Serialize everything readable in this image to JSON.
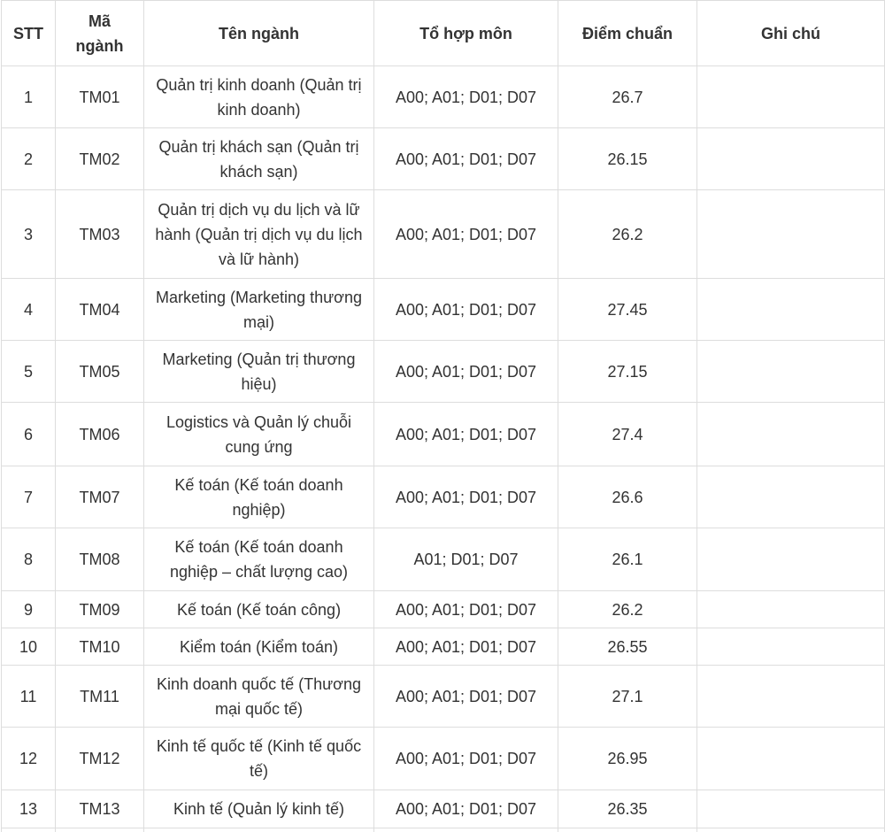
{
  "table": {
    "headers": [
      "STT",
      "Mã ngành",
      "Tên ngành",
      "Tổ hợp môn",
      "Điểm chuẩn",
      "Ghi chú"
    ],
    "rows": [
      [
        1,
        "TM01",
        "Quản trị kinh doanh (Quản trị kinh doanh)",
        "A00; A01; D01; D07",
        26.7
      ],
      [
        2,
        "TM02",
        "Quản trị khách sạn (Quản trị khách sạn)",
        "A00; A01; D01; D07",
        26.15
      ],
      [
        3,
        "TM03",
        "Quản trị dịch vụ du lịch và lữ hành (Quản trị dịch vụ du lịch và lữ hành)",
        "A00; A01; D01; D07",
        26.2
      ],
      [
        4,
        "TM04",
        "Marketing (Marketing thương mại)",
        "A00; A01; D01; D07",
        27.45
      ],
      [
        5,
        "TM05",
        "Marketing (Quản trị thương hiệu)",
        "A00; A01; D01; D07",
        27.15
      ],
      [
        6,
        "TM06",
        "Logistics và Quản lý chuỗi cung ứng",
        "A00; A01; D01; D07",
        27.4
      ],
      [
        7,
        "TM07",
        "Kế toán (Kế toán doanh nghiệp)",
        "A00; A01; D01; D07",
        26.6
      ],
      [
        8,
        "TM08",
        "Kế toán (Kế toán doanh nghiệp – chất lượng cao)",
        "A01; D01; D07",
        26.1
      ],
      [
        9,
        "TM09",
        "Kế toán (Kế toán công)",
        "A00; A01; D01; D07",
        26.2
      ],
      [
        10,
        "TM10",
        "Kiểm toán (Kiểm toán)",
        "A00; A01; D01; D07",
        26.55
      ],
      [
        11,
        "TM11",
        "Kinh doanh quốc tế (Thương mại quốc tế)",
        "A00; A01; D01; D07",
        27.1
      ],
      [
        12,
        "TM12",
        "Kinh tế quốc tế (Kinh tế quốc tế)",
        "A00; A01; D01; D07",
        26.95
      ],
      [
        13,
        "TM13",
        "Kinh tế (Quản lý kinh tế)",
        "A00; A01; D01; D07",
        26.35
      ]
    ]
  }
}
